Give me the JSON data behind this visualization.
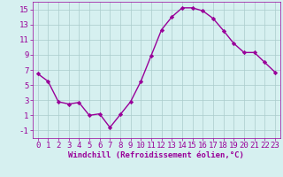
{
  "x": [
    0,
    1,
    2,
    3,
    4,
    5,
    6,
    7,
    8,
    9,
    10,
    11,
    12,
    13,
    14,
    15,
    16,
    17,
    18,
    19,
    20,
    21,
    22,
    23
  ],
  "y": [
    6.5,
    5.5,
    2.8,
    2.5,
    2.7,
    1.0,
    1.2,
    -0.6,
    1.1,
    2.8,
    5.5,
    8.9,
    12.3,
    14.0,
    15.2,
    15.2,
    14.8,
    13.8,
    12.2,
    10.5,
    9.3,
    9.3,
    8.0,
    6.7
  ],
  "line_color": "#990099",
  "marker": "D",
  "marker_size": 2.2,
  "bg_color": "#d6f0f0",
  "grid_color": "#aacccc",
  "xlabel": "Windchill (Refroidissement éolien,°C)",
  "xlabel_color": "#990099",
  "tick_color": "#990099",
  "ylim": [
    -2,
    16
  ],
  "yticks": [
    -1,
    1,
    3,
    5,
    7,
    9,
    11,
    13,
    15
  ],
  "xlim": [
    -0.5,
    23.5
  ],
  "xticks": [
    0,
    1,
    2,
    3,
    4,
    5,
    6,
    7,
    8,
    9,
    10,
    11,
    12,
    13,
    14,
    15,
    16,
    17,
    18,
    19,
    20,
    21,
    22,
    23
  ],
  "linewidth": 1.0,
  "font_size": 6.5
}
